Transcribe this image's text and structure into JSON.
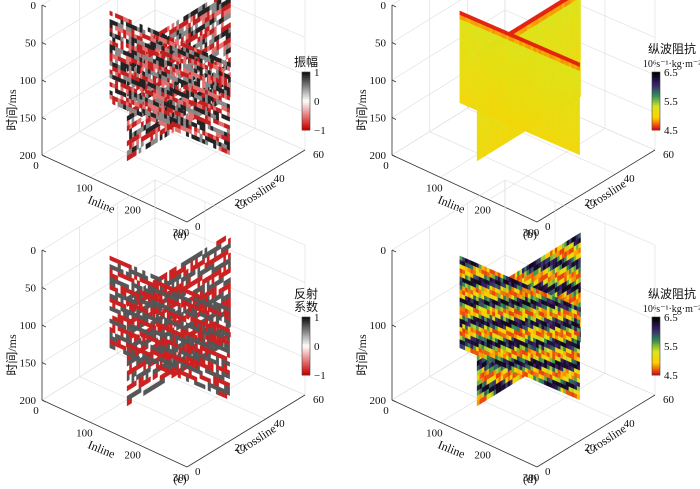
{
  "figure": {
    "panels": [
      {
        "id": "a",
        "caption": "(a)",
        "colorbar": {
          "title": [
            "振幅"
          ],
          "ticks": [
            "1",
            "0",
            "−1"
          ],
          "colors": [
            "#111111",
            "#ffffff",
            "#cc0000"
          ]
        }
      },
      {
        "id": "b",
        "caption": "(b)",
        "colorbar": {
          "title": [
            "纵波阻抗"
          ],
          "unit_text": "10⁶s⁻¹·kg·m⁻²",
          "ticks": [
            "6.5",
            "5.5",
            "4.5"
          ],
          "colors": [
            "#000000",
            "#3b1c6b",
            "#2e8b57",
            "#d7e61d",
            "#ffd000",
            "#e01010"
          ]
        }
      },
      {
        "id": "c",
        "caption": "(c)",
        "colorbar": {
          "title": [
            "反射",
            "系数"
          ],
          "ticks": [
            "1",
            "0",
            "−1"
          ],
          "colors": [
            "#111111",
            "#ffffff",
            "#cc0000"
          ]
        }
      },
      {
        "id": "d",
        "caption": "(d)",
        "colorbar": {
          "title": [
            "纵波阻抗"
          ],
          "unit_text": "10⁶s⁻¹·kg·m⁻²",
          "ticks": [
            "6.5",
            "5.5",
            "4.5"
          ],
          "colors": [
            "#000000",
            "#3b1c6b",
            "#2e8b57",
            "#d7e61d",
            "#ffd000",
            "#e01010"
          ]
        }
      }
    ],
    "axes": {
      "z_label": "时间/ms",
      "x_label": "Inline",
      "y_label": "Crossline"
    }
  },
  "chart_data": [
    {
      "type": "3d-seismic-section",
      "panel": "a",
      "quantity": "振幅",
      "colormap": "red-white-black",
      "zlabel": "时间/ms",
      "xlabel": "Inline",
      "ylabel": "Crossline",
      "z_ticks": [
        0,
        50,
        100,
        150,
        200
      ],
      "zlim": [
        0,
        200
      ],
      "x_ticks": [
        0,
        100,
        200,
        300
      ],
      "xlim": [
        0,
        300
      ],
      "y_ticks": [
        0,
        20,
        40,
        60
      ],
      "ylim": [
        0,
        60
      ],
      "color_range": [
        -1,
        1
      ],
      "colorbar_ticks": [
        1,
        0,
        -1
      ]
    },
    {
      "type": "3d-seismic-section",
      "panel": "b",
      "quantity": "纵波阻抗",
      "colormap": "red-yellow-green-purple-black",
      "zlabel": "时间/ms",
      "xlabel": "Inline",
      "ylabel": "Crossline",
      "z_ticks": [
        0,
        50,
        100,
        150,
        200
      ],
      "zlim": [
        0,
        200
      ],
      "x_ticks": [
        0,
        100,
        200,
        300
      ],
      "xlim": [
        0,
        300
      ],
      "y_ticks": [
        0,
        20,
        40,
        60
      ],
      "ylim": [
        0,
        60
      ],
      "color_range": [
        4.5,
        6.5
      ],
      "colorbar_ticks": [
        6.5,
        5.5,
        4.5
      ]
    },
    {
      "type": "3d-seismic-section",
      "panel": "c",
      "quantity": "反射系数",
      "colormap": "red-white-black",
      "zlabel": "时间/ms",
      "xlabel": "Inline",
      "ylabel": "Crossline",
      "z_ticks": [
        0,
        50,
        100,
        150,
        200
      ],
      "zlim": [
        0,
        200
      ],
      "x_ticks": [
        0,
        100,
        200,
        300
      ],
      "xlim": [
        0,
        300
      ],
      "y_ticks": [
        0,
        20,
        40,
        60
      ],
      "ylim": [
        0,
        60
      ],
      "color_range": [
        -1,
        1
      ],
      "colorbar_ticks": [
        1,
        0,
        -1
      ]
    },
    {
      "type": "3d-seismic-section",
      "panel": "d",
      "quantity": "纵波阻抗",
      "colormap": "red-yellow-green-purple-black",
      "zlabel": "时间/ms",
      "xlabel": "Inline",
      "ylabel": "Crossline",
      "z_ticks": [
        0,
        100,
        200
      ],
      "zlim": [
        0,
        200
      ],
      "x_ticks": [
        0,
        100,
        200,
        300
      ],
      "xlim": [
        0,
        300
      ],
      "y_ticks": [
        0,
        20,
        40,
        60
      ],
      "ylim": [
        0,
        60
      ],
      "color_range": [
        4.5,
        6.5
      ],
      "colorbar_ticks": [
        6.5,
        5.5,
        4.5
      ]
    }
  ]
}
